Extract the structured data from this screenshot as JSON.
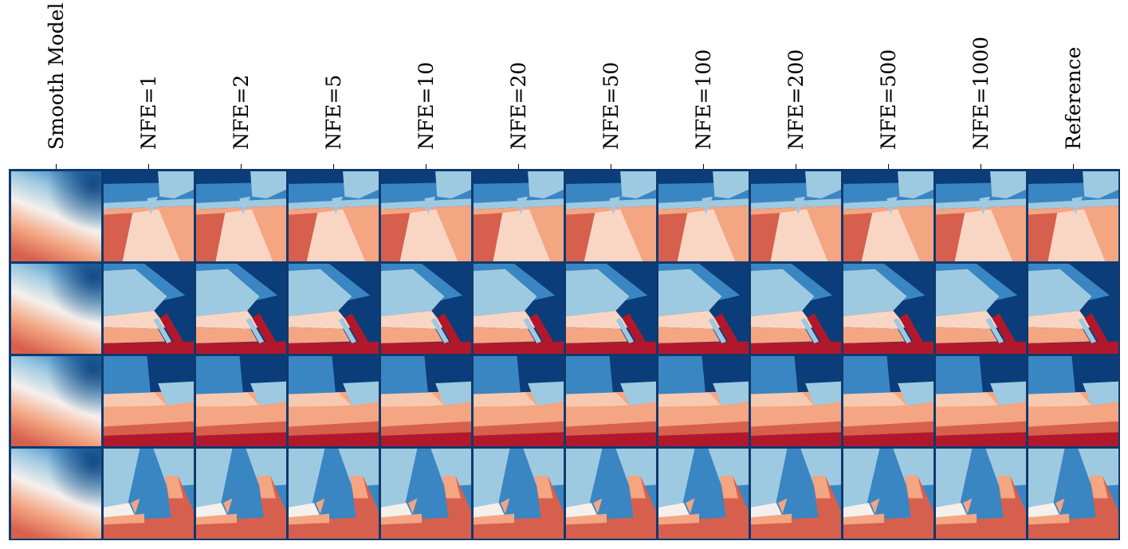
{
  "figure": {
    "columns": [
      "Smooth Model",
      "NFE=1",
      "NFE=2",
      "NFE=5",
      "NFE=10",
      "NFE=20",
      "NFE=50",
      "NFE=100",
      "NFE=200",
      "NFE=500",
      "NFE=1000",
      "Reference"
    ],
    "rows": 4,
    "colormap": {
      "deep_blue": "#0b3d7a",
      "mid_blue": "#3a86c3",
      "light_blue": "#9ecae1",
      "white": "#f5f0ec",
      "light_red": "#f4a582",
      "mid_red": "#d6604d",
      "deep_red": "#b2182b"
    },
    "frame_color": "#0e3a6e"
  }
}
